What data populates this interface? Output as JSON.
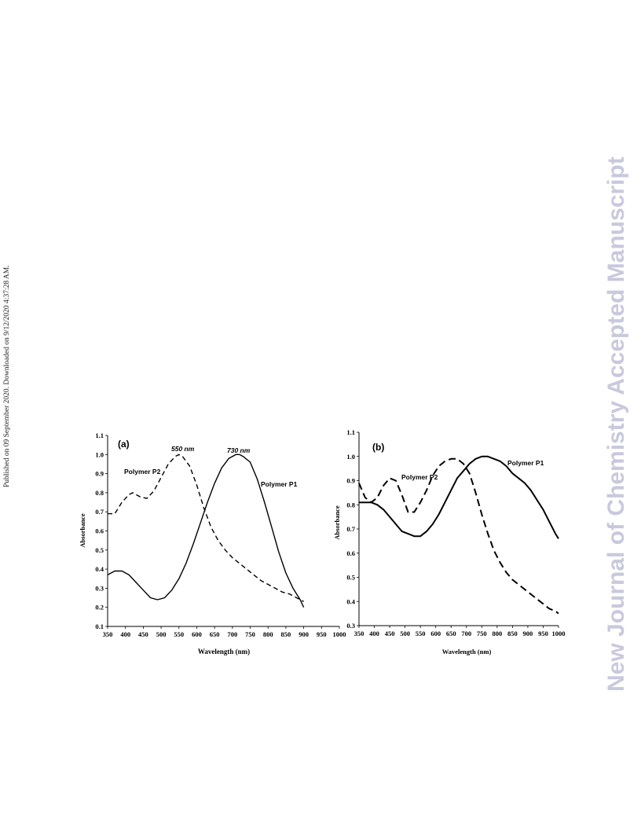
{
  "sidebar": {
    "text": "Published on 09 September 2020. Downloaded on 9/12/2020 4:37:28 AM."
  },
  "watermark": {
    "text": "New Journal of Chemistry Accepted Manuscript"
  },
  "chart_data": [
    {
      "panel": "(a)",
      "type": "line",
      "xlabel": "Wavelength (nm)",
      "ylabel": "Absorbance",
      "xlim": [
        350,
        1000
      ],
      "ylim": [
        0.1,
        1.1
      ],
      "xticks": [
        "350",
        "400",
        "450",
        "500",
        "550",
        "600",
        "650",
        "700",
        "750",
        "800",
        "850",
        "900",
        "950",
        "1000"
      ],
      "yticks": [
        "0.1",
        "0.2",
        "0.3",
        "0.4",
        "0.5",
        "0.6",
        "0.7",
        "0.8",
        "0.9",
        "1.0",
        "1.1"
      ],
      "series": [
        {
          "name": "Polymer P1",
          "style": "solid",
          "x": [
            350,
            370,
            390,
            410,
            430,
            450,
            470,
            490,
            510,
            530,
            550,
            570,
            590,
            610,
            630,
            650,
            670,
            690,
            710,
            720,
            730,
            750,
            770,
            790,
            810,
            830,
            850,
            870,
            890,
            900
          ],
          "y": [
            0.37,
            0.39,
            0.39,
            0.37,
            0.33,
            0.29,
            0.25,
            0.24,
            0.25,
            0.29,
            0.35,
            0.43,
            0.53,
            0.64,
            0.75,
            0.85,
            0.93,
            0.98,
            1.0,
            1.0,
            0.99,
            0.96,
            0.87,
            0.75,
            0.62,
            0.49,
            0.38,
            0.3,
            0.24,
            0.2
          ]
        },
        {
          "name": "Polymer P2",
          "style": "dashed",
          "x": [
            350,
            370,
            390,
            410,
            420,
            440,
            460,
            480,
            500,
            520,
            540,
            550,
            560,
            580,
            600,
            620,
            640,
            660,
            680,
            700,
            720,
            740,
            760,
            780,
            800,
            820,
            840,
            860,
            880,
            900
          ],
          "y": [
            0.69,
            0.69,
            0.75,
            0.79,
            0.8,
            0.78,
            0.77,
            0.81,
            0.88,
            0.95,
            0.99,
            1.0,
            0.99,
            0.94,
            0.84,
            0.72,
            0.62,
            0.55,
            0.5,
            0.46,
            0.43,
            0.4,
            0.37,
            0.34,
            0.32,
            0.3,
            0.28,
            0.27,
            0.25,
            0.23
          ]
        }
      ],
      "annotations": [
        "550 nm",
        "730 nm"
      ]
    },
    {
      "panel": "(b)",
      "type": "line",
      "xlabel": "Wavelength (nm)",
      "ylabel": "Absorbance",
      "xlim": [
        350,
        1000
      ],
      "ylim": [
        0.3,
        1.1
      ],
      "xticks": [
        "350",
        "400",
        "450",
        "500",
        "550",
        "600",
        "650",
        "700",
        "750",
        "800",
        "850",
        "900",
        "950",
        "1000"
      ],
      "yticks": [
        "0.3",
        "0.4",
        "0.5",
        "0.6",
        "0.7",
        "0.8",
        "0.9",
        "1.0",
        "1.1"
      ],
      "series": [
        {
          "name": "Polymer P1",
          "style": "solid",
          "x": [
            350,
            370,
            390,
            410,
            430,
            450,
            470,
            490,
            510,
            530,
            550,
            570,
            590,
            610,
            630,
            650,
            670,
            690,
            710,
            730,
            750,
            770,
            790,
            810,
            830,
            850,
            870,
            890,
            910,
            930,
            950,
            970,
            990,
            1000
          ],
          "y": [
            0.81,
            0.81,
            0.81,
            0.8,
            0.78,
            0.75,
            0.72,
            0.69,
            0.68,
            0.67,
            0.67,
            0.69,
            0.72,
            0.76,
            0.81,
            0.86,
            0.91,
            0.94,
            0.97,
            0.99,
            1.0,
            1.0,
            0.99,
            0.98,
            0.96,
            0.93,
            0.91,
            0.89,
            0.86,
            0.82,
            0.78,
            0.73,
            0.68,
            0.66
          ]
        },
        {
          "name": "Polymer P2",
          "style": "dashed",
          "x": [
            350,
            370,
            390,
            410,
            430,
            450,
            470,
            490,
            510,
            530,
            550,
            570,
            590,
            610,
            630,
            650,
            670,
            690,
            710,
            730,
            750,
            770,
            790,
            810,
            830,
            850,
            870,
            890,
            910,
            930,
            950,
            970,
            990,
            1000
          ],
          "y": [
            0.89,
            0.83,
            0.81,
            0.83,
            0.88,
            0.91,
            0.9,
            0.84,
            0.77,
            0.77,
            0.81,
            0.86,
            0.92,
            0.96,
            0.98,
            0.99,
            0.99,
            0.97,
            0.93,
            0.85,
            0.76,
            0.68,
            0.61,
            0.56,
            0.52,
            0.49,
            0.47,
            0.45,
            0.43,
            0.41,
            0.39,
            0.37,
            0.36,
            0.35
          ]
        }
      ]
    }
  ]
}
